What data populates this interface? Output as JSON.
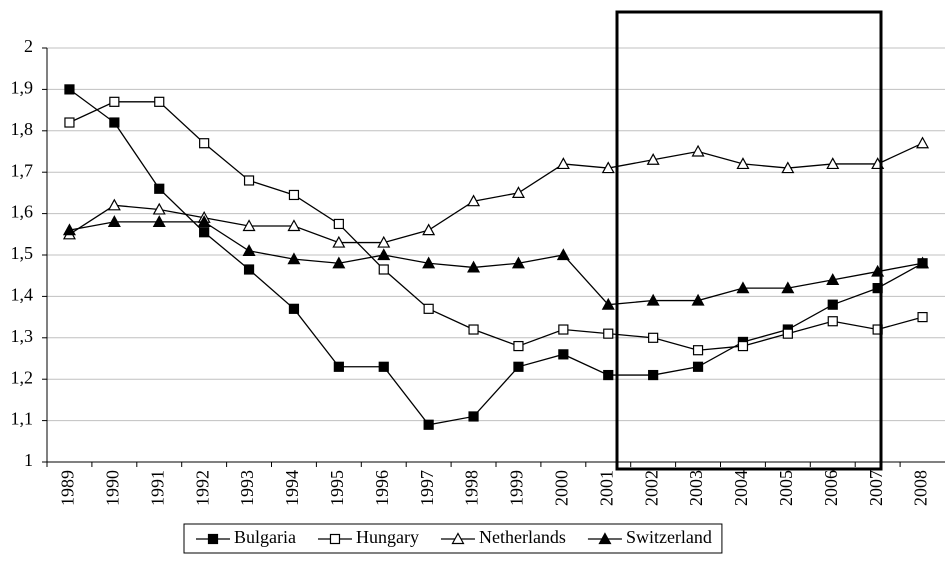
{
  "chart_data": {
    "type": "line",
    "categories": [
      "1989",
      "1990",
      "1991",
      "1992",
      "1993",
      "1994",
      "1995",
      "1996",
      "1997",
      "1998",
      "1999",
      "2000",
      "2001",
      "2002",
      "2003",
      "2004",
      "2005",
      "2006",
      "2007",
      "2008"
    ],
    "series": [
      {
        "name": "Bulgaria",
        "color": "#000000",
        "marker": "square",
        "filled": true,
        "values": [
          1.9,
          1.82,
          1.66,
          1.555,
          1.465,
          1.37,
          1.23,
          1.23,
          1.09,
          1.11,
          1.23,
          1.26,
          1.21,
          1.21,
          1.23,
          1.29,
          1.32,
          1.38,
          1.42,
          1.48
        ]
      },
      {
        "name": "Hungary",
        "color": "#000000",
        "marker": "square",
        "filled": false,
        "values": [
          1.82,
          1.87,
          1.87,
          1.77,
          1.68,
          1.645,
          1.575,
          1.465,
          1.37,
          1.32,
          1.28,
          1.32,
          1.31,
          1.3,
          1.27,
          1.28,
          1.31,
          1.34,
          1.32,
          1.35
        ]
      },
      {
        "name": "Netherlands",
        "color": "#000000",
        "marker": "triangle",
        "filled": false,
        "values": [
          1.55,
          1.62,
          1.61,
          1.59,
          1.57,
          1.57,
          1.53,
          1.53,
          1.56,
          1.63,
          1.65,
          1.72,
          1.71,
          1.73,
          1.75,
          1.72,
          1.71,
          1.72,
          1.72,
          1.77
        ]
      },
      {
        "name": "Switzerland",
        "color": "#000000",
        "marker": "triangle",
        "filled": true,
        "values": [
          1.56,
          1.58,
          1.58,
          1.58,
          1.51,
          1.49,
          1.48,
          1.5,
          1.48,
          1.47,
          1.48,
          1.5,
          1.38,
          1.39,
          1.39,
          1.42,
          1.42,
          1.44,
          1.46,
          1.48
        ]
      }
    ],
    "ylim": [
      1,
      2
    ],
    "yticks": [
      1,
      {
        "value": 1.1,
        "label": "1,1"
      },
      {
        "value": 1.2,
        "label": "1,2"
      },
      {
        "value": 1.3,
        "label": "1,3"
      },
      {
        "value": 1.4,
        "label": "1,4"
      },
      {
        "value": 1.5,
        "label": "1,5"
      },
      {
        "value": 1.6,
        "label": "1,6"
      },
      {
        "value": 1.7,
        "label": "1,7"
      },
      {
        "value": 1.8,
        "label": "1,8"
      },
      {
        "value": 1.9,
        "label": "1,9"
      },
      2
    ],
    "grid": true,
    "legend": "bottom"
  }
}
